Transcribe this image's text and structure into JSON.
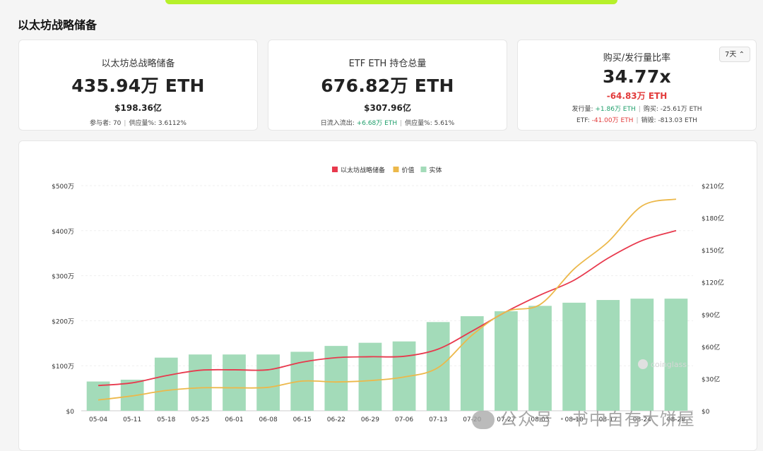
{
  "page_title": "以太坊战略储备",
  "cards": [
    {
      "label": "以太坊总战略储备",
      "value": "435.94万 ETH",
      "sub": "$198.36亿",
      "meta_items": [
        {
          "text": "参与者: 70"
        },
        {
          "text": "供应量%: 3.6112%"
        }
      ]
    },
    {
      "label": "ETF ETH 持仓总量",
      "value": "676.82万 ETH",
      "sub": "$307.96亿",
      "meta_items": [
        {
          "prefix": "日流入流出: ",
          "highlight": "+6.68万 ETH",
          "color": "green"
        },
        {
          "text": "供应量%: 5.61%"
        }
      ]
    },
    {
      "label": "购买/发行量比率",
      "value": "34.77x",
      "sub": "-64.83万 ETH",
      "period": "7天",
      "meta_lines": [
        [
          {
            "prefix": "发行量: ",
            "highlight": "+1.86万 ETH",
            "color": "green"
          },
          {
            "text": "购买: -25.61万 ETH"
          }
        ],
        [
          {
            "prefix": "ETF: ",
            "highlight": "-41.00万 ETH",
            "color": "red"
          },
          {
            "text": "销毁: -813.03 ETH"
          }
        ]
      ]
    }
  ],
  "chart_data": {
    "type": "bar",
    "legend": [
      {
        "name": "以太坊战略储备",
        "color": "#e8394d"
      },
      {
        "name": "价值",
        "color": "#ecb84a"
      },
      {
        "name": "实体",
        "color": "#a3dbb9"
      }
    ],
    "legend_position": "top-center",
    "categories": [
      "05-04",
      "05-11",
      "05-18",
      "05-25",
      "06-01",
      "06-08",
      "06-15",
      "06-22",
      "06-29",
      "07-06",
      "07-13",
      "07-20",
      "07-27",
      "08-03",
      "08-10",
      "08-17",
      "08-24",
      "08-28"
    ],
    "left_axis": {
      "ticks": [
        "$0",
        "$100万",
        "$200万",
        "$300万",
        "$400万",
        "$500万"
      ],
      "min": 0,
      "max": 500
    },
    "right_axis": {
      "ticks": [
        "$0",
        "$30亿",
        "$60亿",
        "$90亿",
        "$120亿",
        "$150亿",
        "$180亿",
        "$210亿"
      ],
      "min": 0,
      "max": 210
    },
    "series": [
      {
        "name": "实体",
        "type": "bar",
        "axis": "left",
        "color": "#a3dbb9",
        "values": [
          65,
          69,
          118,
          125,
          125,
          125,
          131,
          144,
          151,
          154,
          197,
          210,
          221,
          233,
          240,
          246,
          249,
          249
        ]
      },
      {
        "name": "以太坊战略储备",
        "type": "line",
        "axis": "left",
        "color": "#e8394d",
        "values": [
          56,
          62,
          78,
          90,
          91,
          91,
          108,
          118,
          120,
          121,
          137,
          177,
          220,
          257,
          290,
          339,
          378,
          400
        ]
      },
      {
        "name": "价值",
        "type": "line",
        "axis": "left",
        "color": "#ecb84a",
        "values": [
          24,
          33,
          45,
          51,
          51,
          52,
          66,
          64,
          67,
          75,
          96,
          168,
          220,
          236,
          315,
          375,
          455,
          470
        ]
      }
    ],
    "grid": true,
    "watermark": "coinglass"
  },
  "overlay_watermark": "公众号 · 书中自有大饼屋"
}
